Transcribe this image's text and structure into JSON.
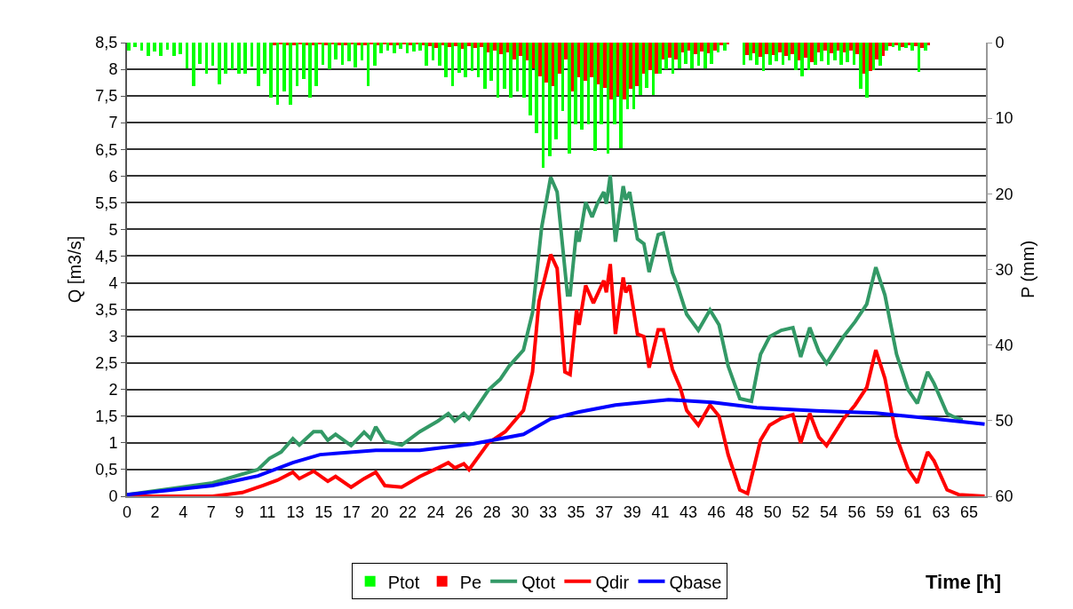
{
  "chart_data": {
    "type": "line",
    "xlabel": "Time [h]",
    "ylabel": "Q [m3/s]",
    "y2label": "P (mm)",
    "xlim": [
      0,
      66.3
    ],
    "ylim": [
      0,
      8.5
    ],
    "y2lim": [
      60,
      0
    ],
    "xticks": [
      0,
      {
        "value": 2.1667,
        "label": "2"
      },
      {
        "value": 4.3333,
        "label": "4"
      },
      {
        "value": 6.5,
        "label": "7"
      },
      {
        "value": 8.6667,
        "label": "9"
      },
      {
        "value": 10.8333,
        "label": "11"
      },
      13,
      {
        "value": 15.1667,
        "label": "15"
      },
      {
        "value": 17.3333,
        "label": "17"
      },
      {
        "value": 19.5,
        "label": "20"
      },
      {
        "value": 21.6667,
        "label": "22"
      },
      {
        "value": 23.8333,
        "label": "24"
      },
      26,
      {
        "value": 28.1667,
        "label": "28"
      },
      {
        "value": 30.3333,
        "label": "30"
      },
      {
        "value": 32.5,
        "label": "33"
      },
      {
        "value": 34.6667,
        "label": "35"
      },
      {
        "value": 36.8333,
        "label": "37"
      },
      39,
      {
        "value": 41.1667,
        "label": "41"
      },
      {
        "value": 43.3333,
        "label": "43"
      },
      {
        "value": 45.5,
        "label": "46"
      },
      {
        "value": 47.6667,
        "label": "48"
      },
      {
        "value": 49.8333,
        "label": "50"
      },
      52,
      {
        "value": 54.1667,
        "label": "54"
      },
      {
        "value": 56.3333,
        "label": "56"
      },
      {
        "value": 58.5,
        "label": "59"
      },
      {
        "value": 60.6667,
        "label": "61"
      },
      {
        "value": 62.8333,
        "label": "63"
      },
      65
    ],
    "yticks": [
      0,
      {
        "value": 0.5,
        "label": "0,5"
      },
      1,
      {
        "value": 1.5,
        "label": "1,5"
      },
      2,
      {
        "value": 2.5,
        "label": "2,5"
      },
      3,
      {
        "value": 3.5,
        "label": "3,5"
      },
      4,
      {
        "value": 4.5,
        "label": "4,5"
      },
      5,
      {
        "value": 5.5,
        "label": "5,5"
      },
      6,
      {
        "value": 6.5,
        "label": "6,5"
      },
      7,
      {
        "value": 7.5,
        "label": "7,5"
      },
      8,
      {
        "value": 8.5,
        "label": "8,5"
      }
    ],
    "y2ticks": [
      0,
      10,
      20,
      30,
      40,
      50,
      60
    ],
    "grid": "y",
    "legend": "bottom",
    "marker": "none",
    "series": [
      {
        "name": "Ptot",
        "type": "bar",
        "axis": "y2",
        "color": "#00ff00",
        "x": [
          0.25,
          0.75,
          1.25,
          1.75,
          2.25,
          2.75,
          3.25,
          3.75,
          4.25,
          4.75,
          5.25,
          5.75,
          6.25,
          6.75,
          7.25,
          7.75,
          8.25,
          8.75,
          9.25,
          9.75,
          10.25,
          10.75,
          11.25,
          11.75,
          12.25,
          12.75,
          13.25,
          13.75,
          14.25,
          14.75,
          15.25,
          15.75,
          16.25,
          16.75,
          17.25,
          17.75,
          18.25,
          18.75,
          19.25,
          19.75,
          20.25,
          20.75,
          21.25,
          21.75,
          22.25,
          22.75,
          23.25,
          23.75,
          24.25,
          24.75,
          25.25,
          25.75,
          26.25,
          26.75,
          27.25,
          27.75,
          28.25,
          28.75,
          29.25,
          29.75,
          30.25,
          30.75,
          31.25,
          31.75,
          32.25,
          32.75,
          33.25,
          33.75,
          34.25,
          34.75,
          35.25,
          35.75,
          36.25,
          36.75,
          37.25,
          37.75,
          38.25,
          38.75,
          39.25,
          39.75,
          40.25,
          40.75,
          41.25,
          41.75,
          42.25,
          42.75,
          43.25,
          43.75,
          44.25,
          44.75,
          45.25,
          45.75,
          46.25,
          46.75,
          47.25,
          47.75,
          48.25,
          48.75,
          49.25,
          49.75,
          50.25,
          50.75,
          51.25,
          51.75,
          52.25,
          52.75,
          53.25,
          53.75,
          54.25,
          54.75,
          55.25,
          55.75,
          56.25,
          56.75,
          57.25,
          57.75,
          58.25,
          58.75,
          59.25,
          59.75,
          60.25,
          60.75,
          61.25,
          61.75,
          62.25,
          62.75,
          63.25,
          63.75,
          64.25,
          64.75,
          65.25,
          65.75
        ],
        "values": [
          1.0,
          0.6,
          1.0,
          1.8,
          1.2,
          1.8,
          0.9,
          1.8,
          1.5,
          3.4,
          5.7,
          2.8,
          4.1,
          3.0,
          5.5,
          4.1,
          3.5,
          4.1,
          4.1,
          3.2,
          5.7,
          4.1,
          7.3,
          8.2,
          6.5,
          8.2,
          5.7,
          4.8,
          7.3,
          5.7,
          2.9,
          3.5,
          2.2,
          2.9,
          2.5,
          3.3,
          2.4,
          5.7,
          3.0,
          1.4,
          1.0,
          1.4,
          0.8,
          1.4,
          1.2,
          1.0,
          3.0,
          2.4,
          3.0,
          4.6,
          5.7,
          4.0,
          4.6,
          3.8,
          4.6,
          6.1,
          5.0,
          7.3,
          6.1,
          7.3,
          6.5,
          7.3,
          9.6,
          12.0,
          16.6,
          15.0,
          12.8,
          9.0,
          14.7,
          10.8,
          11.5,
          10.8,
          14.3,
          10.8,
          14.7,
          10.8,
          14.0,
          8.8,
          8.8,
          6.9,
          6.0,
          6.9,
          4.1,
          3.5,
          4.1,
          3.4,
          2.8,
          3.4,
          3.0,
          3.4,
          2.8,
          1.3,
          1.0,
          0,
          0,
          2.9,
          2.4,
          2.9,
          3.8,
          2.9,
          2.5,
          2.9,
          2.4,
          3.6,
          4.5,
          3.6,
          2.9,
          2.5,
          2.9,
          2.4,
          2.9,
          2.6,
          2.9,
          6.1,
          7.3,
          3.6,
          3.0,
          1.0,
          0.6,
          1.0,
          0.7,
          1.0,
          3.9,
          1.0,
          0,
          0,
          0,
          0,
          0,
          0,
          0,
          0
        ]
      },
      {
        "name": "Pe",
        "type": "bar",
        "axis": "y2",
        "color": "#ff0000",
        "x": [
          0.25,
          0.75,
          1.25,
          1.75,
          2.25,
          2.75,
          3.25,
          3.75,
          4.25,
          4.75,
          5.25,
          5.75,
          6.25,
          6.75,
          7.25,
          7.75,
          8.25,
          8.75,
          9.25,
          9.75,
          10.25,
          10.75,
          11.25,
          11.75,
          12.25,
          12.75,
          13.25,
          13.75,
          14.25,
          14.75,
          15.25,
          15.75,
          16.25,
          16.75,
          17.25,
          17.75,
          18.25,
          18.75,
          19.25,
          19.75,
          20.25,
          20.75,
          21.25,
          21.75,
          22.25,
          22.75,
          23.25,
          23.75,
          24.25,
          24.75,
          25.25,
          25.75,
          26.25,
          26.75,
          27.25,
          27.75,
          28.25,
          28.75,
          29.25,
          29.75,
          30.25,
          30.75,
          31.25,
          31.75,
          32.25,
          32.75,
          33.25,
          33.75,
          34.25,
          34.75,
          35.25,
          35.75,
          36.25,
          36.75,
          37.25,
          37.75,
          38.25,
          38.75,
          39.25,
          39.75,
          40.25,
          40.75,
          41.25,
          41.75,
          42.25,
          42.75,
          43.25,
          43.75,
          44.25,
          44.75,
          45.25,
          45.75,
          46.25,
          46.75,
          47.25,
          47.75,
          48.25,
          48.75,
          49.25,
          49.75,
          50.25,
          50.75,
          51.25,
          51.75,
          52.25,
          52.75,
          53.25,
          53.75,
          54.25,
          54.75,
          55.25,
          55.75,
          56.25,
          56.75,
          57.25,
          57.75,
          58.25,
          58.75,
          59.25,
          59.75,
          60.25,
          60.75,
          61.25,
          61.75,
          62.25,
          62.75,
          63.25,
          63.75,
          64.25,
          64.75,
          65.25,
          65.75
        ],
        "values": [
          0,
          0,
          0,
          0,
          0,
          0,
          0,
          0,
          0,
          0,
          0,
          0,
          0,
          0,
          0,
          0,
          0,
          0,
          0,
          0,
          0,
          0,
          0.3,
          0.2,
          0.4,
          0.3,
          0.2,
          0.3,
          0.4,
          0.2,
          0.3,
          0.2,
          0.4,
          0.3,
          0.2,
          0.3,
          0.4,
          0.2,
          0.3,
          0.2,
          0.3,
          0.4,
          0.2,
          0.3,
          0.2,
          0.4,
          0.5,
          0.7,
          0.4,
          0.6,
          0.5,
          0.8,
          0.5,
          0.7,
          0.6,
          1.3,
          1.0,
          1.5,
          1.3,
          2.2,
          1.8,
          2.4,
          3.4,
          4.5,
          5.3,
          5.7,
          4.1,
          2.2,
          6.4,
          4.6,
          5.0,
          4.6,
          5.5,
          6.0,
          7.5,
          7.0,
          7.5,
          6.1,
          5.8,
          4.1,
          3.6,
          4.1,
          2.2,
          2.0,
          2.2,
          1.3,
          1.0,
          1.5,
          1.2,
          1.4,
          1.1,
          0.3,
          0.2,
          0,
          0,
          1.7,
          1.4,
          1.9,
          1.5,
          1.7,
          1.3,
          1.8,
          1.5,
          2.4,
          2.0,
          2.6,
          1.3,
          1.0,
          1.4,
          1.1,
          1.3,
          1.0,
          1.5,
          4.1,
          3.7,
          2.2,
          1.8,
          0.5,
          0.3,
          0.6,
          0.4,
          0.5,
          0.7,
          0.4,
          0,
          0,
          0,
          0,
          0,
          0,
          0,
          0
        ]
      },
      {
        "name": "Qtot",
        "color": "#339966",
        "x": [
          0,
          6.6,
          10.1,
          11.0,
          11.9,
          12.8,
          13.3,
          14.4,
          15.0,
          15.5,
          16.1,
          17.3,
          18.3,
          18.8,
          19.2,
          19.9,
          21.2,
          22.6,
          24.0,
          24.8,
          25.3,
          26.0,
          26.4,
          27.9,
          28.8,
          29.5,
          30.6,
          31.3,
          32.0,
          32.7,
          33.2,
          34.0,
          34.2,
          34.7,
          34.9,
          35.4,
          35.9,
          36.3,
          36.8,
          37.0,
          37.3,
          37.7,
          38.3,
          38.5,
          38.8,
          39.4,
          39.9,
          40.3,
          41.0,
          41.4,
          42.1,
          42.5,
          43.2,
          44.1,
          45.0,
          45.7,
          46.4,
          47.3,
          48.2,
          48.9,
          49.6,
          50.5,
          51.4,
          52.0,
          52.7,
          53.4,
          54.0,
          55.3,
          56.2,
          57.1,
          57.8,
          58.5,
          59.4,
          60.3,
          61.0,
          61.8,
          62.3,
          63.3,
          63.7,
          64.5
        ],
        "values": [
          0.03,
          0.25,
          0.5,
          0.71,
          0.83,
          1.08,
          0.96,
          1.21,
          1.21,
          1.05,
          1.16,
          0.95,
          1.2,
          1.08,
          1.3,
          1.03,
          0.96,
          1.21,
          1.41,
          1.55,
          1.41,
          1.55,
          1.45,
          1.99,
          2.19,
          2.44,
          2.74,
          3.44,
          5.03,
          5.98,
          5.7,
          3.77,
          3.77,
          4.98,
          4.77,
          5.51,
          5.23,
          5.48,
          5.7,
          5.48,
          6.01,
          4.77,
          5.81,
          5.56,
          5.7,
          4.82,
          4.73,
          4.2,
          4.9,
          4.93,
          4.19,
          3.94,
          3.41,
          3.11,
          3.49,
          3.21,
          2.44,
          1.83,
          1.78,
          2.66,
          2.99,
          3.11,
          3.16,
          2.61,
          3.16,
          2.71,
          2.49,
          2.99,
          3.27,
          3.6,
          4.29,
          3.77,
          2.66,
          1.99,
          1.74,
          2.33,
          2.11,
          1.55,
          1.5,
          1.43
        ]
      },
      {
        "name": "Qdir",
        "color": "#ff0000",
        "x": [
          0,
          6.6,
          8.9,
          10.5,
          11.6,
          12.8,
          13.3,
          14.4,
          15.5,
          16.1,
          17.3,
          18.3,
          19.2,
          19.9,
          21.2,
          22.6,
          24.0,
          24.8,
          25.3,
          26.0,
          26.4,
          27.9,
          29.2,
          30.6,
          31.3,
          31.8,
          32.7,
          33.2,
          33.8,
          34.2,
          34.7,
          34.9,
          35.4,
          36.0,
          36.8,
          37.0,
          37.3,
          37.7,
          38.3,
          38.5,
          38.8,
          39.4,
          39.9,
          40.3,
          41.0,
          41.4,
          42.1,
          42.7,
          43.2,
          44.1,
          45.0,
          45.7,
          46.4,
          47.3,
          47.9,
          48.9,
          49.6,
          50.5,
          51.4,
          52.0,
          52.7,
          53.4,
          54.0,
          55.3,
          56.2,
          57.1,
          57.8,
          58.5,
          59.4,
          60.3,
          61.0,
          61.8,
          62.3,
          63.3,
          64.2,
          66.2
        ],
        "values": [
          0,
          0,
          0.07,
          0.2,
          0.3,
          0.45,
          0.33,
          0.47,
          0.28,
          0.37,
          0.17,
          0.33,
          0.45,
          0.2,
          0.17,
          0.37,
          0.53,
          0.63,
          0.53,
          0.61,
          0.5,
          1.0,
          1.21,
          1.61,
          2.33,
          3.65,
          4.53,
          4.27,
          2.33,
          2.28,
          3.49,
          3.21,
          3.95,
          3.62,
          4.04,
          3.82,
          4.35,
          3.04,
          4.1,
          3.82,
          3.95,
          3.04,
          2.99,
          2.41,
          3.12,
          3.12,
          2.38,
          2.04,
          1.61,
          1.33,
          1.71,
          1.5,
          0.78,
          0.12,
          0.05,
          1.05,
          1.33,
          1.46,
          1.53,
          1.0,
          1.55,
          1.11,
          0.95,
          1.45,
          1.71,
          2.04,
          2.74,
          2.21,
          1.11,
          0.5,
          0.25,
          0.83,
          0.66,
          0.12,
          0.03,
          0
        ]
      },
      {
        "name": "Qbase",
        "color": "#0000ff",
        "x": [
          0,
          6.6,
          10.1,
          12.8,
          14.9,
          19.2,
          22.6,
          26.7,
          30.6,
          32.7,
          34.9,
          37.7,
          41.8,
          45.2,
          48.6,
          53.2,
          57.8,
          62.3,
          66.2
        ],
        "values": [
          0.03,
          0.2,
          0.38,
          0.63,
          0.78,
          0.86,
          0.86,
          0.98,
          1.16,
          1.45,
          1.58,
          1.71,
          1.81,
          1.76,
          1.66,
          1.6,
          1.56,
          1.45,
          1.35
        ]
      }
    ]
  }
}
